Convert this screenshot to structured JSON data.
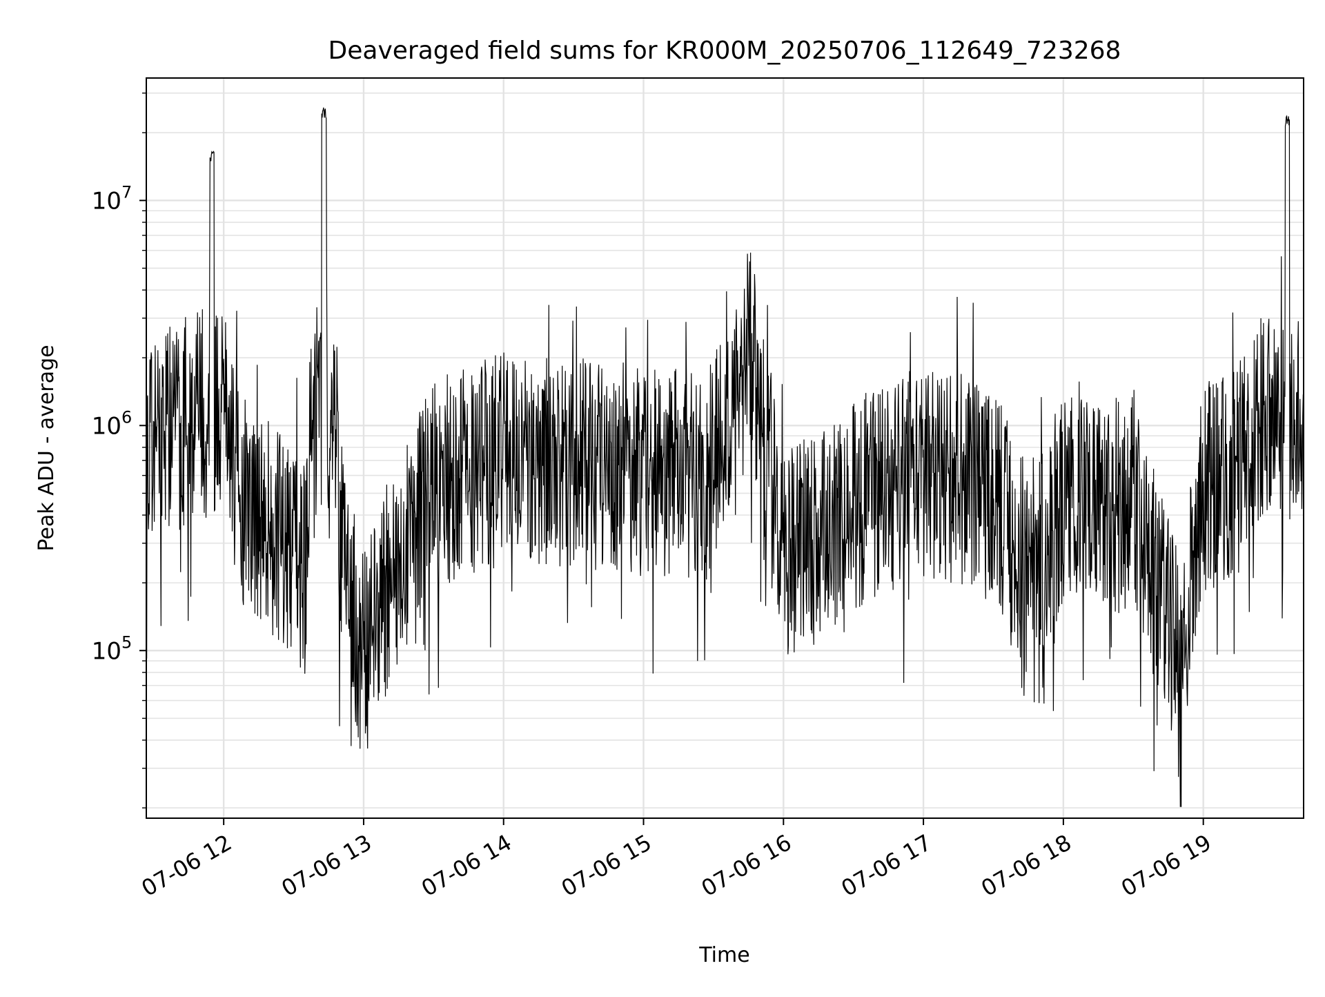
{
  "chart_data": {
    "type": "line",
    "title": "Deaveraged field sums for KR000M_20250706_112649_723268",
    "xlabel": "Time",
    "ylabel": "Peak ADU - average",
    "x_axis": {
      "kind": "datetime",
      "range": [
        "2025-07-06 11:26:49",
        "2025-07-06 19:43:00"
      ],
      "tick_labels": [
        "07-06 12",
        "07-06 13",
        "07-06 14",
        "07-06 15",
        "07-06 16",
        "07-06 17",
        "07-06 18",
        "07-06 19"
      ]
    },
    "y_axis": {
      "scale": "log",
      "range": [
        18000,
        35000000
      ],
      "tick_labels": [
        {
          "value": 100000,
          "base": "10",
          "exp": "5"
        },
        {
          "value": 1000000,
          "base": "10",
          "exp": "6"
        },
        {
          "value": 10000000,
          "base": "10",
          "exp": "7"
        }
      ]
    },
    "grid": true,
    "legend": "none",
    "series": [
      {
        "color": "#000000",
        "points": [
          [
            "2025-07-06 11:27",
            800000
          ],
          [
            "2025-07-06 11:35",
            1200000
          ],
          [
            "2025-07-06 11:45",
            1100000
          ],
          [
            "2025-07-06 11:55",
            16500000
          ],
          [
            "2025-07-06 12:05",
            600000
          ],
          [
            "2025-07-06 12:20",
            400000
          ],
          [
            "2025-07-06 12:35",
            250000
          ],
          [
            "2025-07-06 12:43",
            26000000
          ],
          [
            "2025-07-06 12:50",
            350000
          ],
          [
            "2025-07-06 13:00",
            100000
          ],
          [
            "2025-07-06 13:15",
            300000
          ],
          [
            "2025-07-06 13:30",
            600000
          ],
          [
            "2025-07-06 14:00",
            800000
          ],
          [
            "2025-07-06 14:30",
            750000
          ],
          [
            "2025-07-06 15:00",
            700000
          ],
          [
            "2025-07-06 15:30",
            650000
          ],
          [
            "2025-07-06 15:45",
            2700000
          ],
          [
            "2025-07-06 16:00",
            300000
          ],
          [
            "2025-07-06 16:15",
            350000
          ],
          [
            "2025-07-06 16:30",
            500000
          ],
          [
            "2025-07-06 17:00",
            700000
          ],
          [
            "2025-07-06 17:30",
            600000
          ],
          [
            "2025-07-06 17:45",
            250000
          ],
          [
            "2025-07-06 18:00",
            500000
          ],
          [
            "2025-07-06 18:30",
            500000
          ],
          [
            "2025-07-06 18:50",
            100000
          ],
          [
            "2025-07-06 19:00",
            600000
          ],
          [
            "2025-07-06 19:15",
            700000
          ],
          [
            "2025-07-06 19:30",
            1500000
          ],
          [
            "2025-07-06 19:36",
            24000000
          ],
          [
            "2025-07-06 19:43",
            900000
          ]
        ]
      }
    ]
  }
}
